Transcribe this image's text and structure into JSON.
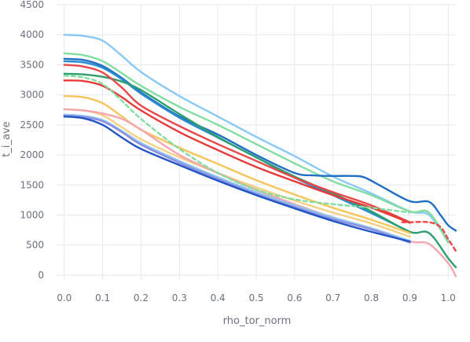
{
  "chart_data": {
    "type": "line",
    "xlabel": "rho_tor_norm",
    "ylabel": "t_i_ave",
    "xlim": [
      -0.02,
      1.02
    ],
    "ylim": [
      -80,
      4500
    ],
    "grid": true,
    "legend": "none",
    "x_ticks": [
      0.0,
      0.1,
      0.2,
      0.3,
      0.4,
      0.5,
      0.6,
      0.7,
      0.8,
      0.9,
      1.0
    ],
    "x_tick_labels": [
      "0.0",
      "0.1",
      "0.2",
      "0.3",
      "0.4",
      "0.5",
      "0.6",
      "0.7",
      "0.8",
      "0.9",
      "1.0"
    ],
    "y_ticks": [
      0,
      500,
      1000,
      1500,
      2000,
      2500,
      3000,
      3500,
      4000,
      4500
    ],
    "y_tick_labels": [
      "0",
      "500",
      "1000",
      "1500",
      "2000",
      "2500",
      "3000",
      "3500",
      "4000",
      "4500"
    ],
    "series": [
      {
        "color": "#89c9f5",
        "dash": false,
        "x": [
          0,
          0.05,
          0.1,
          0.15,
          0.2,
          0.3,
          0.4,
          0.5,
          0.6,
          0.7,
          0.8,
          0.9,
          0.95,
          1.0
        ],
        "y": [
          4000,
          3980,
          3900,
          3650,
          3380,
          2980,
          2640,
          2300,
          1980,
          1640,
          1360,
          1060,
          1000,
          560
        ]
      },
      {
        "color": "#82dea0",
        "dash": false,
        "x": [
          0,
          0.05,
          0.1,
          0.15,
          0.2,
          0.3,
          0.4,
          0.5,
          0.6,
          0.7,
          0.8,
          0.9,
          0.95,
          1.0
        ],
        "y": [
          3690,
          3660,
          3560,
          3360,
          3150,
          2800,
          2500,
          2180,
          1860,
          1560,
          1330,
          1060,
          1040,
          540
        ]
      },
      {
        "color": "#1f6fc4",
        "dash": false,
        "x": [
          0,
          0.05,
          0.1,
          0.15,
          0.2,
          0.3,
          0.4,
          0.5,
          0.6,
          0.65,
          0.7,
          0.75,
          0.78,
          0.82,
          0.9,
          0.95,
          0.98,
          1.0,
          1.02
        ],
        "y": [
          3600,
          3580,
          3480,
          3280,
          3040,
          2640,
          2340,
          2000,
          1700,
          1660,
          1650,
          1650,
          1630,
          1500,
          1230,
          1220,
          1000,
          830,
          740
        ]
      },
      {
        "color": "#2a8bd0",
        "dash": false,
        "x": [
          0,
          0.05,
          0.1,
          0.15,
          0.2,
          0.3,
          0.4,
          0.5,
          0.6,
          0.7,
          0.8,
          0.9
        ],
        "y": [
          3560,
          3540,
          3450,
          3260,
          3020,
          2620,
          2290,
          1960,
          1620,
          1330,
          1030,
          720
        ]
      },
      {
        "color": "#2c9f6e",
        "dash": false,
        "x": [
          0,
          0.05,
          0.1,
          0.15,
          0.2,
          0.3,
          0.4,
          0.5,
          0.6,
          0.7,
          0.8,
          0.9,
          0.95,
          1.0,
          1.02
        ],
        "y": [
          3350,
          3340,
          3300,
          3220,
          3080,
          2680,
          2300,
          1960,
          1640,
          1360,
          1060,
          720,
          700,
          280,
          130
        ]
      },
      {
        "color": "#e84848",
        "dash": false,
        "x": [
          0,
          0.05,
          0.1,
          0.15,
          0.2,
          0.3,
          0.4,
          0.5,
          0.6,
          0.7,
          0.8,
          0.9
        ],
        "y": [
          3500,
          3470,
          3370,
          3120,
          2820,
          2480,
          2180,
          1900,
          1620,
          1380,
          1160,
          880
        ]
      },
      {
        "color": "#e63a3a",
        "dash": false,
        "x": [
          0,
          0.05,
          0.1,
          0.15,
          0.2,
          0.3,
          0.4,
          0.5,
          0.6,
          0.7,
          0.8,
          0.9
        ],
        "y": [
          3240,
          3230,
          3150,
          2960,
          2740,
          2380,
          2080,
          1800,
          1560,
          1330,
          1120,
          870
        ]
      },
      {
        "color": "#f6c55a",
        "dash": false,
        "x": [
          0,
          0.05,
          0.1,
          0.15,
          0.2,
          0.3,
          0.4,
          0.5,
          0.6,
          0.7,
          0.8,
          0.9
        ],
        "y": [
          2980,
          2960,
          2860,
          2640,
          2420,
          2120,
          1850,
          1580,
          1340,
          1120,
          920,
          700
        ]
      },
      {
        "color": "#f4d080",
        "dash": false,
        "x": [
          0,
          0.05,
          0.1,
          0.15,
          0.2,
          0.3,
          0.4,
          0.5,
          0.6,
          0.7,
          0.8,
          0.9
        ],
        "y": [
          2760,
          2740,
          2660,
          2460,
          2260,
          1960,
          1700,
          1460,
          1240,
          1040,
          860,
          640
        ]
      },
      {
        "color": "#f2a6ad",
        "dash": false,
        "x": [
          0,
          0.05,
          0.1,
          0.15,
          0.2,
          0.3,
          0.4,
          0.5,
          0.6,
          0.7,
          0.8,
          0.9,
          0.95,
          1.0,
          1.02
        ],
        "y": [
          2760,
          2740,
          2690,
          2600,
          2420,
          2000,
          1700,
          1420,
          1180,
          960,
          780,
          560,
          520,
          200,
          -20
        ]
      },
      {
        "color": "#8fc3ef",
        "dash": false,
        "x": [
          0,
          0.05,
          0.1,
          0.15,
          0.2,
          0.3,
          0.4,
          0.5,
          0.6,
          0.7,
          0.8,
          0.9
        ],
        "y": [
          2670,
          2650,
          2580,
          2400,
          2200,
          1900,
          1630,
          1380,
          1160,
          960,
          780,
          570
        ]
      },
      {
        "color": "#8b8fe0",
        "dash": false,
        "x": [
          0,
          0.05,
          0.1,
          0.15,
          0.2,
          0.3,
          0.4,
          0.5,
          0.6,
          0.7,
          0.8,
          0.9
        ],
        "y": [
          2650,
          2630,
          2560,
          2380,
          2170,
          1870,
          1600,
          1350,
          1130,
          930,
          760,
          540
        ]
      },
      {
        "color": "#2154c4",
        "dash": false,
        "x": [
          0,
          0.05,
          0.1,
          0.15,
          0.2,
          0.3,
          0.4,
          0.5,
          0.6,
          0.7,
          0.8,
          0.9
        ],
        "y": [
          2640,
          2610,
          2500,
          2290,
          2100,
          1830,
          1570,
          1330,
          1110,
          900,
          720,
          560
        ]
      },
      {
        "color": "#82dea0",
        "dash": true,
        "x": [
          0,
          0.05,
          0.1,
          0.15,
          0.2,
          0.3,
          0.4,
          0.5,
          0.6,
          0.7,
          0.8,
          0.9
        ],
        "y": [
          3320,
          3290,
          3180,
          2900,
          2600,
          2100,
          1700,
          1420,
          1260,
          1180,
          1120,
          1040
        ]
      },
      {
        "color": "#e84848",
        "dash": true,
        "x": [
          0.88,
          0.9,
          0.95,
          0.98,
          1.0,
          1.02
        ],
        "y": [
          880,
          880,
          880,
          800,
          600,
          400
        ]
      }
    ]
  }
}
